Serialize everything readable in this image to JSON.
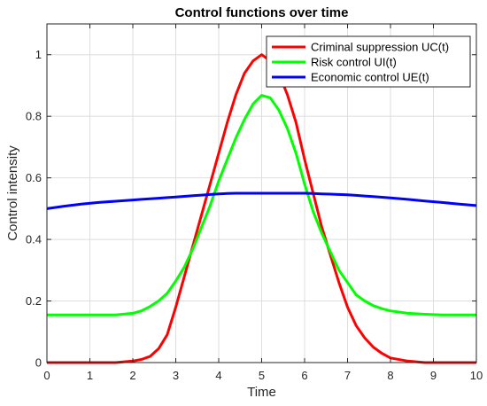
{
  "chart_data": {
    "type": "line",
    "title": "Control functions over time",
    "xlabel": "Time",
    "ylabel": "Control intensity",
    "xlim": [
      0,
      10
    ],
    "ylim": [
      0,
      1.1
    ],
    "xticks": [
      "0",
      "1",
      "2",
      "3",
      "4",
      "5",
      "6",
      "7",
      "8",
      "9",
      "10"
    ],
    "yticks": [
      "0",
      "0.2",
      "0.4",
      "0.6",
      "0.8",
      "1"
    ],
    "grid": true,
    "legend_position": "top-right",
    "x": [
      0,
      0.4,
      0.8,
      1.2,
      1.6,
      2.0,
      2.2,
      2.4,
      2.6,
      2.8,
      3.0,
      3.2,
      3.4,
      3.6,
      3.8,
      4.0,
      4.2,
      4.4,
      4.6,
      4.8,
      5.0,
      5.2,
      5.4,
      5.6,
      5.8,
      6.0,
      6.2,
      6.4,
      6.6,
      6.8,
      7.0,
      7.2,
      7.4,
      7.6,
      7.8,
      8.0,
      8.4,
      8.8,
      9.2,
      9.6,
      10.0
    ],
    "series": [
      {
        "name": "Criminal suppression UC(t)",
        "color": "#ff0000",
        "values": [
          0,
          0,
          0,
          0,
          0,
          0.005,
          0.01,
          0.02,
          0.045,
          0.09,
          0.18,
          0.28,
          0.38,
          0.48,
          0.58,
          0.68,
          0.78,
          0.87,
          0.94,
          0.98,
          1.0,
          0.98,
          0.94,
          0.87,
          0.78,
          0.66,
          0.55,
          0.44,
          0.35,
          0.26,
          0.18,
          0.12,
          0.08,
          0.05,
          0.03,
          0.015,
          0.005,
          0,
          0,
          0,
          0
        ]
      },
      {
        "name": "Risk control UI(t)",
        "color": "#00ff00",
        "values": [
          0.155,
          0.155,
          0.155,
          0.155,
          0.155,
          0.16,
          0.168,
          0.182,
          0.2,
          0.225,
          0.265,
          0.31,
          0.37,
          0.44,
          0.51,
          0.59,
          0.66,
          0.73,
          0.79,
          0.84,
          0.868,
          0.86,
          0.82,
          0.76,
          0.68,
          0.58,
          0.49,
          0.42,
          0.36,
          0.3,
          0.26,
          0.22,
          0.2,
          0.185,
          0.175,
          0.168,
          0.16,
          0.157,
          0.155,
          0.155,
          0.155
        ]
      },
      {
        "name": "Economic control UE(t)",
        "color": "#0000ff",
        "values": [
          0.5,
          0.508,
          0.515,
          0.52,
          0.524,
          0.528,
          0.53,
          0.532,
          0.534,
          0.536,
          0.538,
          0.54,
          0.542,
          0.544,
          0.546,
          0.548,
          0.549,
          0.55,
          0.55,
          0.55,
          0.55,
          0.55,
          0.55,
          0.55,
          0.55,
          0.55,
          0.549,
          0.548,
          0.547,
          0.546,
          0.545,
          0.543,
          0.541,
          0.539,
          0.537,
          0.535,
          0.53,
          0.525,
          0.52,
          0.515,
          0.51
        ]
      }
    ]
  }
}
